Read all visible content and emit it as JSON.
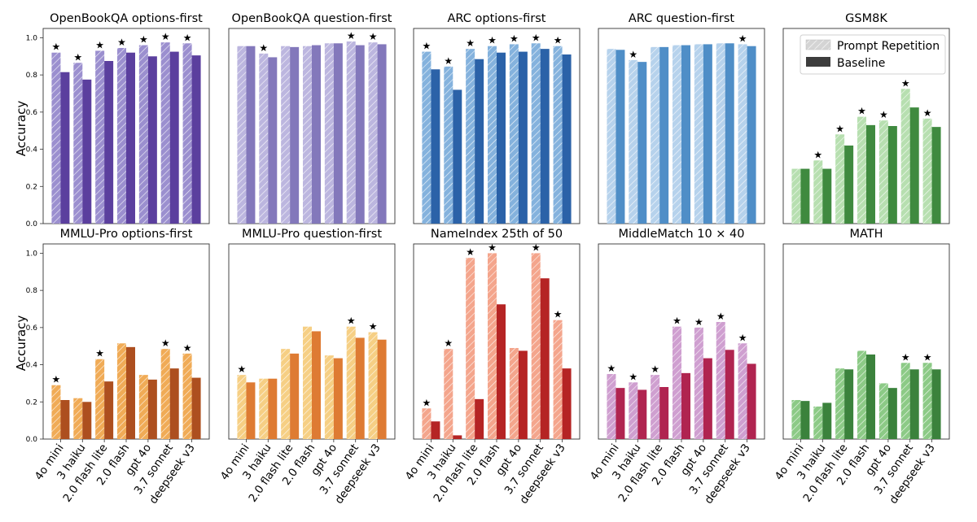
{
  "figure": {
    "ylabel": "Accuracy",
    "yticks": [
      "0.0",
      "0.2",
      "0.4",
      "0.6",
      "0.8",
      "1.0"
    ],
    "legend": {
      "repetition": "Prompt Repetition",
      "baseline": "Baseline"
    },
    "marker": "★"
  },
  "chart_data": [
    {
      "type": "bar",
      "title": "OpenBookQA options-first",
      "ylim": [
        0,
        1.05
      ],
      "categories": [
        "4o mini",
        "3 haiku",
        "2.0 flash lite",
        "2.0 flash",
        "gpt 4o",
        "3.7 sonnet",
        "deepseek v3"
      ],
      "series": [
        {
          "name": "Prompt Repetition",
          "values": [
            0.92,
            0.865,
            0.93,
            0.945,
            0.96,
            0.975,
            0.97
          ],
          "color": "#9b8fcf"
        },
        {
          "name": "Baseline",
          "values": [
            0.815,
            0.775,
            0.875,
            0.92,
            0.9,
            0.925,
            0.905
          ],
          "color": "#5b3f9e"
        }
      ],
      "significant": [
        true,
        true,
        true,
        true,
        true,
        true,
        true
      ]
    },
    {
      "type": "bar",
      "title": "OpenBookQA question-first",
      "ylim": [
        0,
        1.05
      ],
      "categories": [
        "4o mini",
        "3 haiku",
        "2.0 flash lite",
        "2.0 flash",
        "gpt 4o",
        "3.7 sonnet",
        "deepseek v3"
      ],
      "series": [
        {
          "name": "Prompt Repetition",
          "values": [
            0.955,
            0.915,
            0.955,
            0.955,
            0.97,
            0.98,
            0.975
          ],
          "color": "#bcb6df"
        },
        {
          "name": "Baseline",
          "values": [
            0.955,
            0.895,
            0.95,
            0.96,
            0.97,
            0.96,
            0.965
          ],
          "color": "#8378bb"
        }
      ],
      "significant": [
        false,
        true,
        false,
        false,
        false,
        true,
        true
      ]
    },
    {
      "type": "bar",
      "title": "ARC options-first",
      "ylim": [
        0,
        1.05
      ],
      "categories": [
        "4o mini",
        "3 haiku",
        "2.0 flash lite",
        "2.0 flash",
        "gpt 4o",
        "3.7 sonnet",
        "deepseek v3"
      ],
      "series": [
        {
          "name": "Prompt Repetition",
          "values": [
            0.925,
            0.845,
            0.94,
            0.955,
            0.965,
            0.97,
            0.955
          ],
          "color": "#84b2dd"
        },
        {
          "name": "Baseline",
          "values": [
            0.83,
            0.72,
            0.885,
            0.92,
            0.925,
            0.94,
            0.91
          ],
          "color": "#2b62a8"
        }
      ],
      "significant": [
        true,
        true,
        true,
        true,
        true,
        true,
        true
      ]
    },
    {
      "type": "bar",
      "title": "ARC question-first",
      "ylim": [
        0,
        1.05
      ],
      "categories": [
        "4o mini",
        "3 haiku",
        "2.0 flash lite",
        "2.0 flash",
        "gpt 4o",
        "3.7 sonnet",
        "deepseek v3"
      ],
      "series": [
        {
          "name": "Prompt Repetition",
          "values": [
            0.94,
            0.88,
            0.95,
            0.96,
            0.965,
            0.97,
            0.965
          ],
          "color": "#b6d2ec"
        },
        {
          "name": "Baseline",
          "values": [
            0.935,
            0.87,
            0.95,
            0.96,
            0.965,
            0.97,
            0.955
          ],
          "color": "#4f8ec7"
        }
      ],
      "significant": [
        false,
        true,
        false,
        false,
        false,
        false,
        true
      ]
    },
    {
      "type": "bar",
      "title": "GSM8K",
      "ylim": [
        0,
        1.05
      ],
      "categories": [
        "4o mini",
        "3 haiku",
        "2.0 flash lite",
        "2.0 flash",
        "gpt 4o",
        "3.7 sonnet",
        "deepseek v3"
      ],
      "series": [
        {
          "name": "Prompt Repetition",
          "values": [
            0.295,
            0.34,
            0.48,
            0.575,
            0.555,
            0.725,
            0.565
          ],
          "color": "#b7dfb0"
        },
        {
          "name": "Baseline",
          "values": [
            0.295,
            0.295,
            0.42,
            0.53,
            0.525,
            0.625,
            0.52
          ],
          "color": "#3f8a3f"
        }
      ],
      "significant": [
        false,
        true,
        true,
        true,
        true,
        true,
        true
      ],
      "legend": "top-right"
    },
    {
      "type": "bar",
      "title": "MMLU-Pro options-first",
      "ylim": [
        0,
        1.05
      ],
      "categories": [
        "4o mini",
        "3 haiku",
        "2.0 flash lite",
        "2.0 flash",
        "gpt 4o",
        "3.7 sonnet",
        "deepseek v3"
      ],
      "series": [
        {
          "name": "Prompt Repetition",
          "values": [
            0.29,
            0.22,
            0.43,
            0.515,
            0.345,
            0.485,
            0.46
          ],
          "color": "#f0ab56"
        },
        {
          "name": "Baseline",
          "values": [
            0.21,
            0.2,
            0.31,
            0.495,
            0.32,
            0.38,
            0.33
          ],
          "color": "#ad4f1f"
        }
      ],
      "significant": [
        true,
        false,
        true,
        false,
        false,
        true,
        true
      ]
    },
    {
      "type": "bar",
      "title": "MMLU-Pro question-first",
      "ylim": [
        0,
        1.05
      ],
      "categories": [
        "4o mini",
        "3 haiku",
        "2.0 flash lite",
        "2.0 flash",
        "gpt 4o",
        "3.7 sonnet",
        "deepseek v3"
      ],
      "series": [
        {
          "name": "Prompt Repetition",
          "values": [
            0.345,
            0.325,
            0.485,
            0.605,
            0.45,
            0.605,
            0.575
          ],
          "color": "#f6cf84"
        },
        {
          "name": "Baseline",
          "values": [
            0.305,
            0.325,
            0.46,
            0.58,
            0.435,
            0.545,
            0.535
          ],
          "color": "#de7b33"
        }
      ],
      "significant": [
        true,
        false,
        false,
        false,
        false,
        true,
        true
      ]
    },
    {
      "type": "bar",
      "title": "NameIndex 25th of 50",
      "ylim": [
        0,
        1.05
      ],
      "categories": [
        "4o mini",
        "3 haiku",
        "2.0 flash lite",
        "2.0 flash",
        "gpt 4o",
        "3.7 sonnet",
        "deepseek v3"
      ],
      "series": [
        {
          "name": "Prompt Repetition",
          "values": [
            0.165,
            0.485,
            0.975,
            1.0,
            0.49,
            1.0,
            0.64
          ],
          "color": "#f4a58c"
        },
        {
          "name": "Baseline",
          "values": [
            0.095,
            0.02,
            0.215,
            0.725,
            0.475,
            0.865,
            0.38
          ],
          "color": "#b52424"
        }
      ],
      "significant": [
        true,
        true,
        true,
        true,
        false,
        true,
        true
      ]
    },
    {
      "type": "bar",
      "title": "MiddleMatch 10 × 40",
      "ylim": [
        0,
        1.05
      ],
      "categories": [
        "4o mini",
        "3 haiku",
        "2.0 flash lite",
        "2.0 flash",
        "gpt 4o",
        "3.7 sonnet",
        "deepseek v3"
      ],
      "series": [
        {
          "name": "Prompt Repetition",
          "values": [
            0.35,
            0.305,
            0.345,
            0.605,
            0.6,
            0.63,
            0.515
          ],
          "color": "#cf9fd0"
        },
        {
          "name": "Baseline",
          "values": [
            0.275,
            0.265,
            0.28,
            0.355,
            0.435,
            0.48,
            0.405
          ],
          "color": "#b02450"
        }
      ],
      "significant": [
        true,
        true,
        true,
        true,
        true,
        true,
        true
      ]
    },
    {
      "type": "bar",
      "title": "MATH",
      "ylim": [
        0,
        1.05
      ],
      "categories": [
        "4o mini",
        "3 haiku",
        "2.0 flash lite",
        "2.0 flash",
        "gpt 4o",
        "3.7 sonnet",
        "deepseek v3"
      ],
      "series": [
        {
          "name": "Prompt Repetition",
          "values": [
            0.21,
            0.175,
            0.38,
            0.475,
            0.3,
            0.41,
            0.41
          ],
          "color": "#8cca86"
        },
        {
          "name": "Baseline",
          "values": [
            0.205,
            0.195,
            0.375,
            0.455,
            0.275,
            0.375,
            0.375
          ],
          "color": "#3b823c"
        }
      ],
      "significant": [
        false,
        false,
        false,
        false,
        false,
        true,
        true
      ]
    }
  ]
}
